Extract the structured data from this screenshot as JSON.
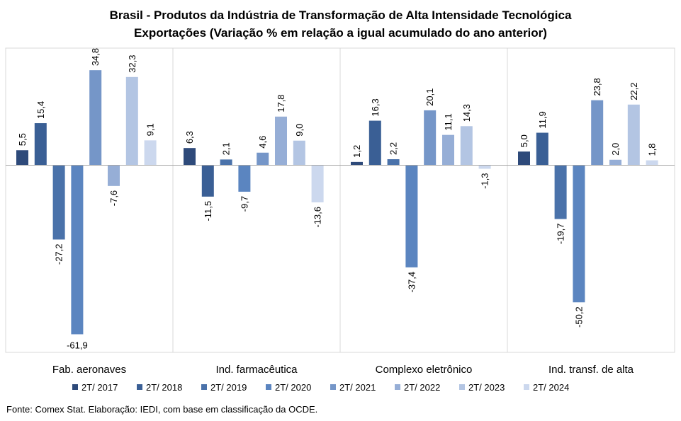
{
  "chart_data": {
    "type": "bar",
    "title": "Brasil - Produtos da Indústria de Transformação de Alta Intensidade Tecnológica",
    "subtitle": "Exportações (Variação % em relação a igual acumulado do ano anterior)",
    "categories": [
      "Fab. aeronaves",
      "Ind. farmacêutica",
      "Complexo eletrônico",
      "Ind. transf. de alta"
    ],
    "series": [
      {
        "name": "2T/ 2017",
        "values": [
          5.5,
          6.3,
          1.2,
          5.0
        ],
        "labels": [
          "5,5",
          "6,3",
          "1,2",
          "5,0"
        ]
      },
      {
        "name": "2T/ 2018",
        "values": [
          15.4,
          -11.5,
          16.3,
          11.9
        ],
        "labels": [
          "15,4",
          "-11,5",
          "16,3",
          "11,9"
        ]
      },
      {
        "name": "2T/ 2019",
        "values": [
          -27.2,
          2.1,
          2.2,
          -19.7
        ],
        "labels": [
          "-27,2",
          "2,1",
          "2,2",
          "-19,7"
        ]
      },
      {
        "name": "2T/ 2020",
        "values": [
          -61.9,
          -9.7,
          -37.4,
          -50.2
        ],
        "labels": [
          "-61,9",
          "-9,7",
          "-37,4",
          "-50,2"
        ]
      },
      {
        "name": "2T/ 2021",
        "values": [
          34.8,
          4.6,
          20.1,
          23.8
        ],
        "labels": [
          "34,8",
          "4,6",
          "20,1",
          "23,8"
        ]
      },
      {
        "name": "2T/ 2022",
        "values": [
          -7.6,
          17.8,
          11.1,
          2.0
        ],
        "labels": [
          "-7,6",
          "17,8",
          "11,1",
          "2,0"
        ]
      },
      {
        "name": "2T/ 2023",
        "values": [
          32.3,
          9.0,
          14.3,
          22.2
        ],
        "labels": [
          "32,3",
          "9,0",
          "14,3",
          "22,2"
        ]
      },
      {
        "name": "2T/ 2024",
        "values": [
          9.1,
          -13.6,
          -1.3,
          1.8
        ],
        "labels": [
          "9,1",
          "-13,6",
          "-1,3",
          "1,8"
        ]
      }
    ],
    "colors": [
      "#2e4a7a",
      "#3a5f95",
      "#4a72aa",
      "#5b85c0",
      "#7596c8",
      "#96aed6",
      "#b3c5e3",
      "#ccd8ee"
    ],
    "ylim": [
      -64,
      40
    ],
    "grid": false,
    "legend": "bottom"
  },
  "footer": {
    "source": "Fonte: Comex Stat. Elaboração: IEDI, com base em classificação da OCDE."
  }
}
